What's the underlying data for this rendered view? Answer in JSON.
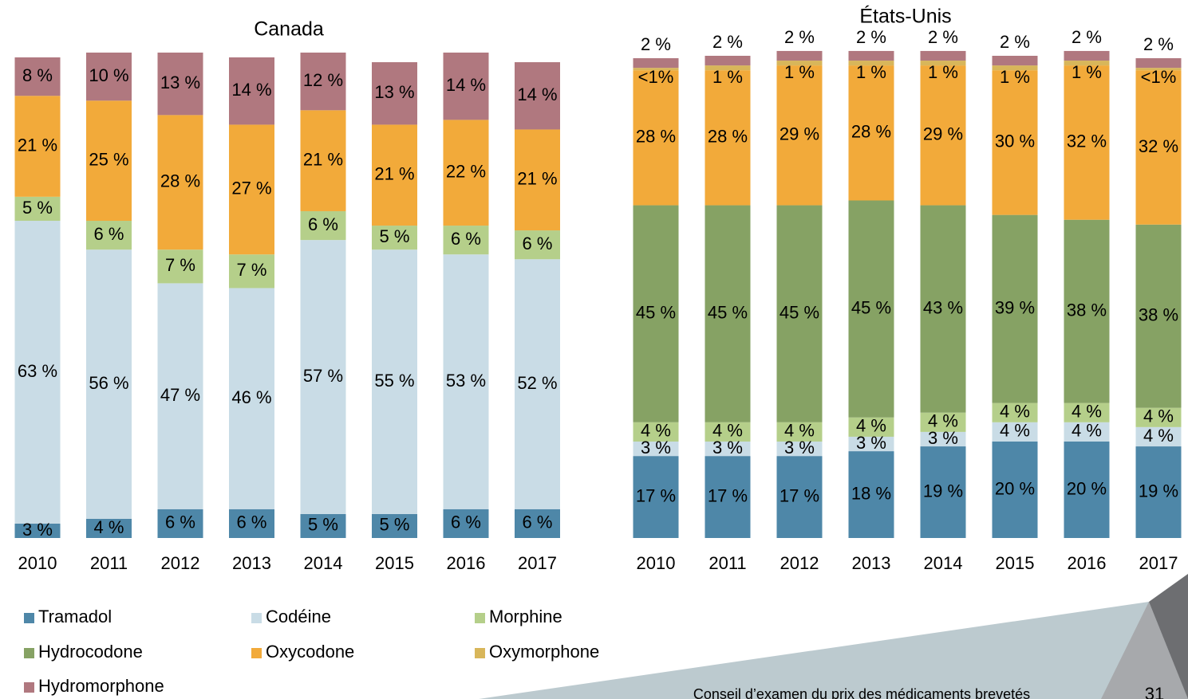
{
  "chart_data": [
    {
      "type": "bar",
      "stacked": true,
      "title": "Canada",
      "categories": [
        "2010",
        "2011",
        "2012",
        "2013",
        "2014",
        "2015",
        "2016",
        "2017"
      ],
      "ylim": [
        0,
        100
      ],
      "series": [
        {
          "name": "Tramadol",
          "color": "#4e87a8",
          "values": [
            3,
            4,
            6,
            6,
            5,
            5,
            6,
            6
          ],
          "value_labels": [
            "3 %",
            "4 %",
            "6 %",
            "6 %",
            "5 %",
            "5 %",
            "6 %",
            "6 %"
          ]
        },
        {
          "name": "Codéine",
          "color": "#c9dce6",
          "values": [
            63,
            56,
            47,
            46,
            57,
            55,
            53,
            52
          ],
          "value_labels": [
            "63 %",
            "56 %",
            "47 %",
            "46 %",
            "57 %",
            "55 %",
            "53 %",
            "52 %"
          ]
        },
        {
          "name": "Morphine",
          "color": "#b5cf8a",
          "values": [
            5,
            6,
            7,
            7,
            6,
            5,
            6,
            6
          ],
          "value_labels": [
            "5 %",
            "6 %",
            "7 %",
            "7 %",
            "6 %",
            "5 %",
            "6 %",
            "6 %"
          ]
        },
        {
          "name": "Oxycodone",
          "color": "#f2aa3a",
          "values": [
            21,
            25,
            28,
            27,
            21,
            21,
            22,
            21
          ],
          "value_labels": [
            "21 %",
            "25 %",
            "28 %",
            "27 %",
            "21 %",
            "21 %",
            "22 %",
            "21 %"
          ]
        },
        {
          "name": "Hydromorphone",
          "color": "#b0787f",
          "values": [
            8,
            10,
            13,
            14,
            12,
            13,
            14,
            14
          ],
          "value_labels": [
            "8 %",
            "10 %",
            "13 %",
            "14 %",
            "12 %",
            "13 %",
            "14 %",
            "14 %"
          ]
        }
      ]
    },
    {
      "type": "bar",
      "stacked": true,
      "title": "États-Unis",
      "categories": [
        "2010",
        "2011",
        "2012",
        "2013",
        "2014",
        "2015",
        "2016",
        "2017"
      ],
      "ylim": [
        0,
        100
      ],
      "series": [
        {
          "name": "Tramadol",
          "color": "#4e87a8",
          "values": [
            17,
            17,
            17,
            18,
            19,
            20,
            20,
            19
          ],
          "value_labels": [
            "17 %",
            "17 %",
            "17 %",
            "18 %",
            "19 %",
            "20 %",
            "20 %",
            "19 %"
          ]
        },
        {
          "name": "Codéine",
          "color": "#c9dce6",
          "values": [
            3,
            3,
            3,
            3,
            3,
            4,
            4,
            4
          ],
          "value_labels": [
            "3 %",
            "3 %",
            "3 %",
            "3 %",
            "3 %",
            "4 %",
            "4 %",
            "4 %"
          ]
        },
        {
          "name": "Morphine",
          "color": "#b5cf8a",
          "values": [
            4,
            4,
            4,
            4,
            4,
            4,
            4,
            4
          ],
          "value_labels": [
            "4 %",
            "4 %",
            "4 %",
            "4 %",
            "4 %",
            "4 %",
            "4 %",
            "4 %"
          ]
        },
        {
          "name": "Hydrocodone",
          "color": "#86a264",
          "values": [
            45,
            45,
            45,
            45,
            43,
            39,
            38,
            38
          ],
          "value_labels": [
            "45 %",
            "45 %",
            "45 %",
            "45 %",
            "43 %",
            "39 %",
            "38 %",
            "38 %"
          ]
        },
        {
          "name": "Oxycodone",
          "color": "#f2aa3a",
          "values": [
            28,
            28,
            29,
            28,
            29,
            30,
            32,
            32
          ],
          "value_labels": [
            "28 %",
            "28 %",
            "29 %",
            "28 %",
            "29 %",
            "30 %",
            "32 %",
            "32 %"
          ]
        },
        {
          "name": "Oxymorphone",
          "color": "#d8b65a",
          "values": [
            0.5,
            1,
            1,
            1,
            1,
            1,
            1,
            0.5
          ],
          "value_labels": [
            "<1%",
            "1 %",
            "1 %",
            "1 %",
            "1 %",
            "1 %",
            "1 %",
            "<1%"
          ]
        },
        {
          "name": "Hydromorphone",
          "color": "#b0787f",
          "values": [
            2,
            2,
            2,
            2,
            2,
            2,
            2,
            2
          ],
          "value_labels": [
            "2 %",
            "2 %",
            "2 %",
            "2 %",
            "2 %",
            "2 %",
            "2 %",
            "2 %"
          ]
        }
      ]
    }
  ],
  "footer": {
    "organization": "Conseil d’examen du prix des médicaments brevetés",
    "page_number": "31"
  }
}
